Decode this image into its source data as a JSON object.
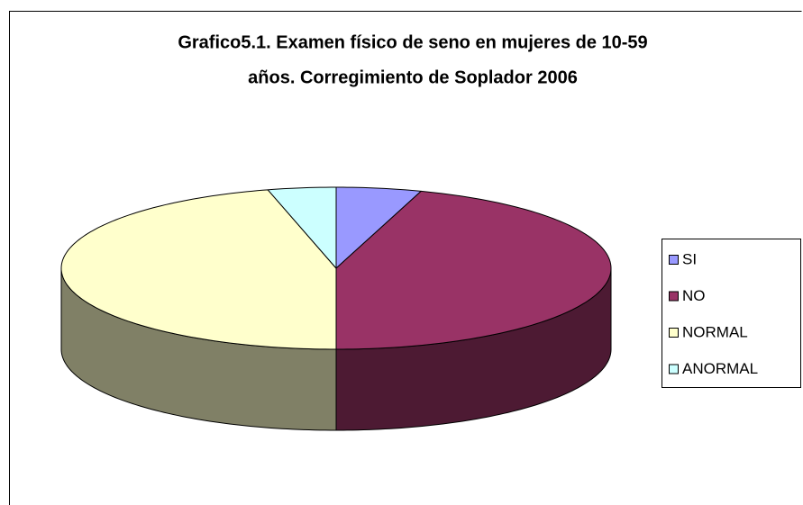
{
  "chart_data": {
    "type": "pie3d",
    "title": [
      "Grafico5.1. Examen físico de seno en mujeres de 10-59",
      "años. Corregimiento de Soplador 2006"
    ],
    "categories": [
      "SI",
      "NO",
      "NORMAL",
      "ANORMAL"
    ],
    "values": [
      5,
      45,
      46,
      4
    ],
    "colors": [
      "#9999ff",
      "#993366",
      "#ffffcc",
      "#ccffff"
    ],
    "legend": "right"
  }
}
